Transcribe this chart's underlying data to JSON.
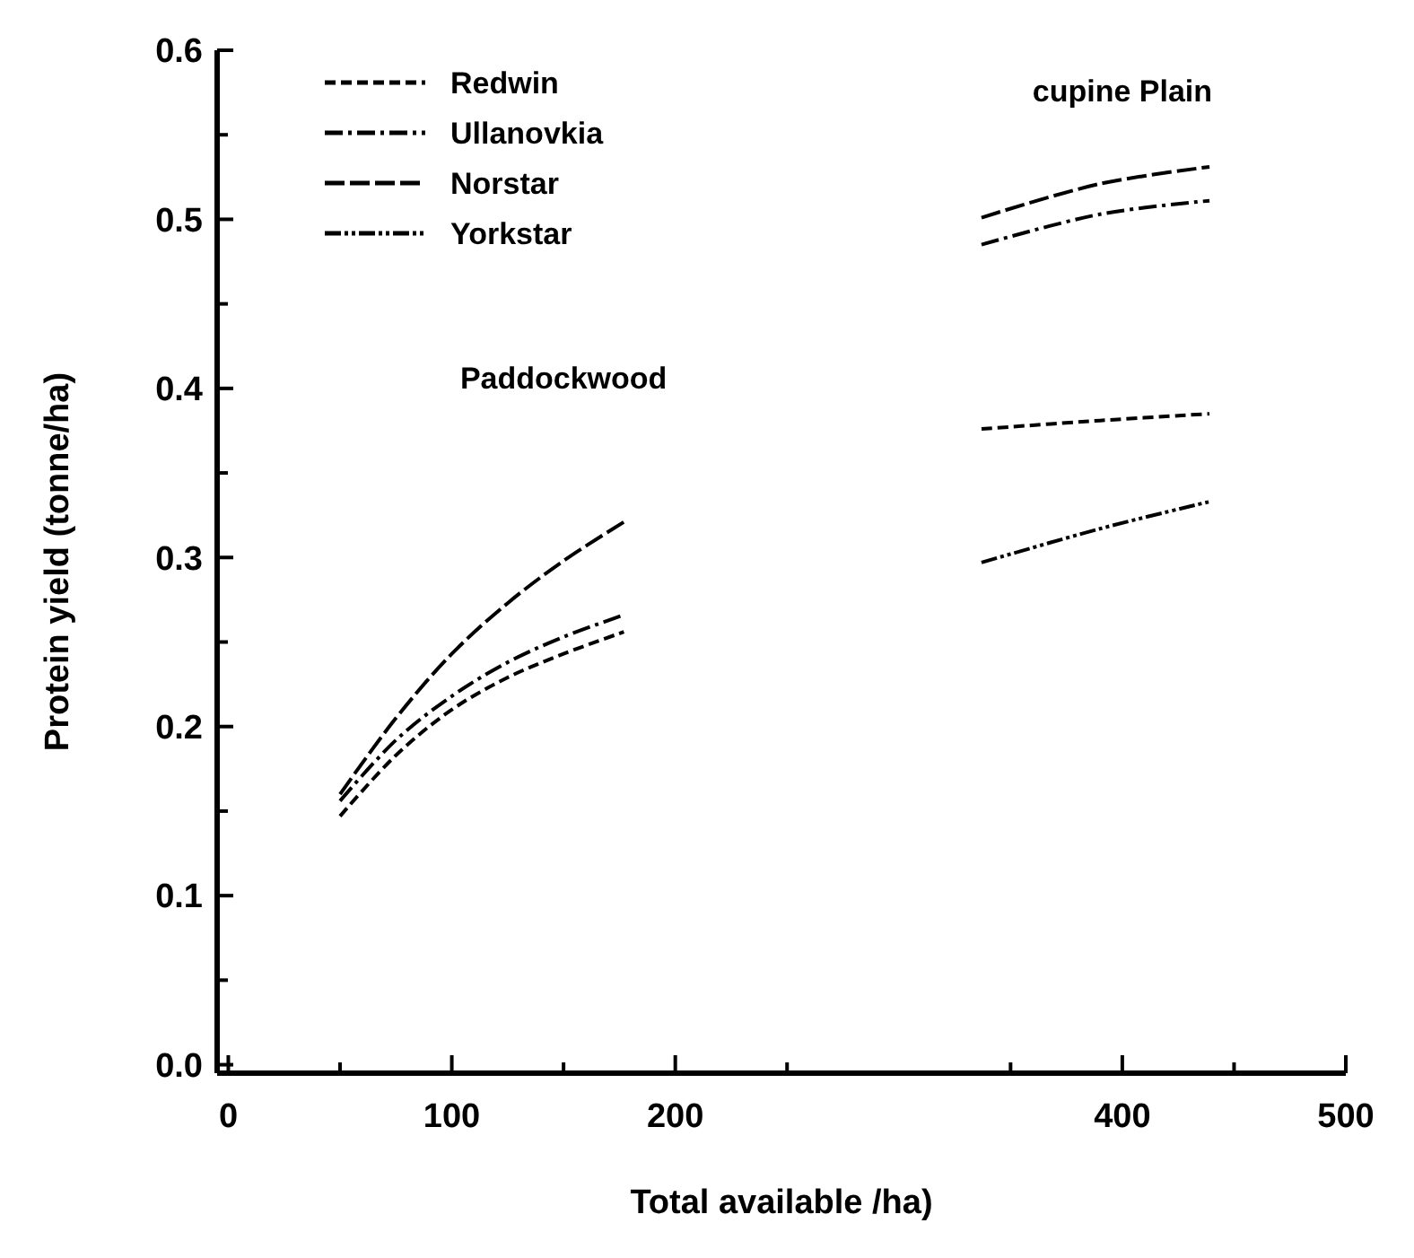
{
  "chart_data": {
    "type": "line",
    "xlabel": "Total available /ha)",
    "ylabel": "Protein yield (tonne/ha)",
    "annotations": [
      "Paddockwood",
      "cupine Plain"
    ],
    "x": [
      50,
      75,
      100,
      125,
      150,
      177,
      260,
      337,
      390,
      439
    ],
    "series": [
      {
        "name": "Redwin",
        "color": "#000000",
        "line_style": "dashed",
        "values": [
          0.147,
          0.183,
          0.21,
          0.229,
          0.243,
          0.256,
          null,
          0.376,
          0.381,
          0.385
        ]
      },
      {
        "name": "Ullanovkia",
        "color": "#000000",
        "line_style": "dashdot",
        "values": [
          0.156,
          0.192,
          0.218,
          0.238,
          0.253,
          0.266,
          null,
          0.485,
          0.503,
          0.511
        ]
      },
      {
        "name": "Norstar",
        "color": "#000000",
        "line_style": "longdash",
        "values": [
          0.16,
          0.205,
          0.243,
          0.273,
          0.298,
          0.321,
          null,
          0.501,
          0.521,
          0.531
        ]
      },
      {
        "name": "Yorkstar",
        "color": "#000000",
        "line_style": "dashdotdot",
        "values": [
          null,
          null,
          null,
          null,
          null,
          null,
          null,
          0.297,
          0.317,
          0.333
        ]
      }
    ],
    "xlim": [
      -5,
      500
    ],
    "ylim": [
      -0.005,
      0.6
    ],
    "xticks": [
      0,
      100,
      200,
      400,
      500,
      {
        "value": 50,
        "label": null
      },
      {
        "value": 150,
        "label": null
      },
      {
        "value": 250,
        "label": null
      },
      {
        "value": 350,
        "label": null
      },
      {
        "value": 450,
        "label": null
      }
    ],
    "yticks": [
      {
        "value": 0,
        "label": "0.0"
      },
      0.1,
      0.2,
      0.3,
      0.4,
      0.5,
      0.6,
      {
        "value": 0.05,
        "label": null
      },
      {
        "value": 0.15,
        "label": null
      },
      {
        "value": 0.25,
        "label": null
      },
      {
        "value": 0.35,
        "label": null
      },
      {
        "value": 0.45,
        "label": null
      },
      {
        "value": 0.55,
        "label": null
      }
    ],
    "legend": "top left",
    "grid": false
  }
}
